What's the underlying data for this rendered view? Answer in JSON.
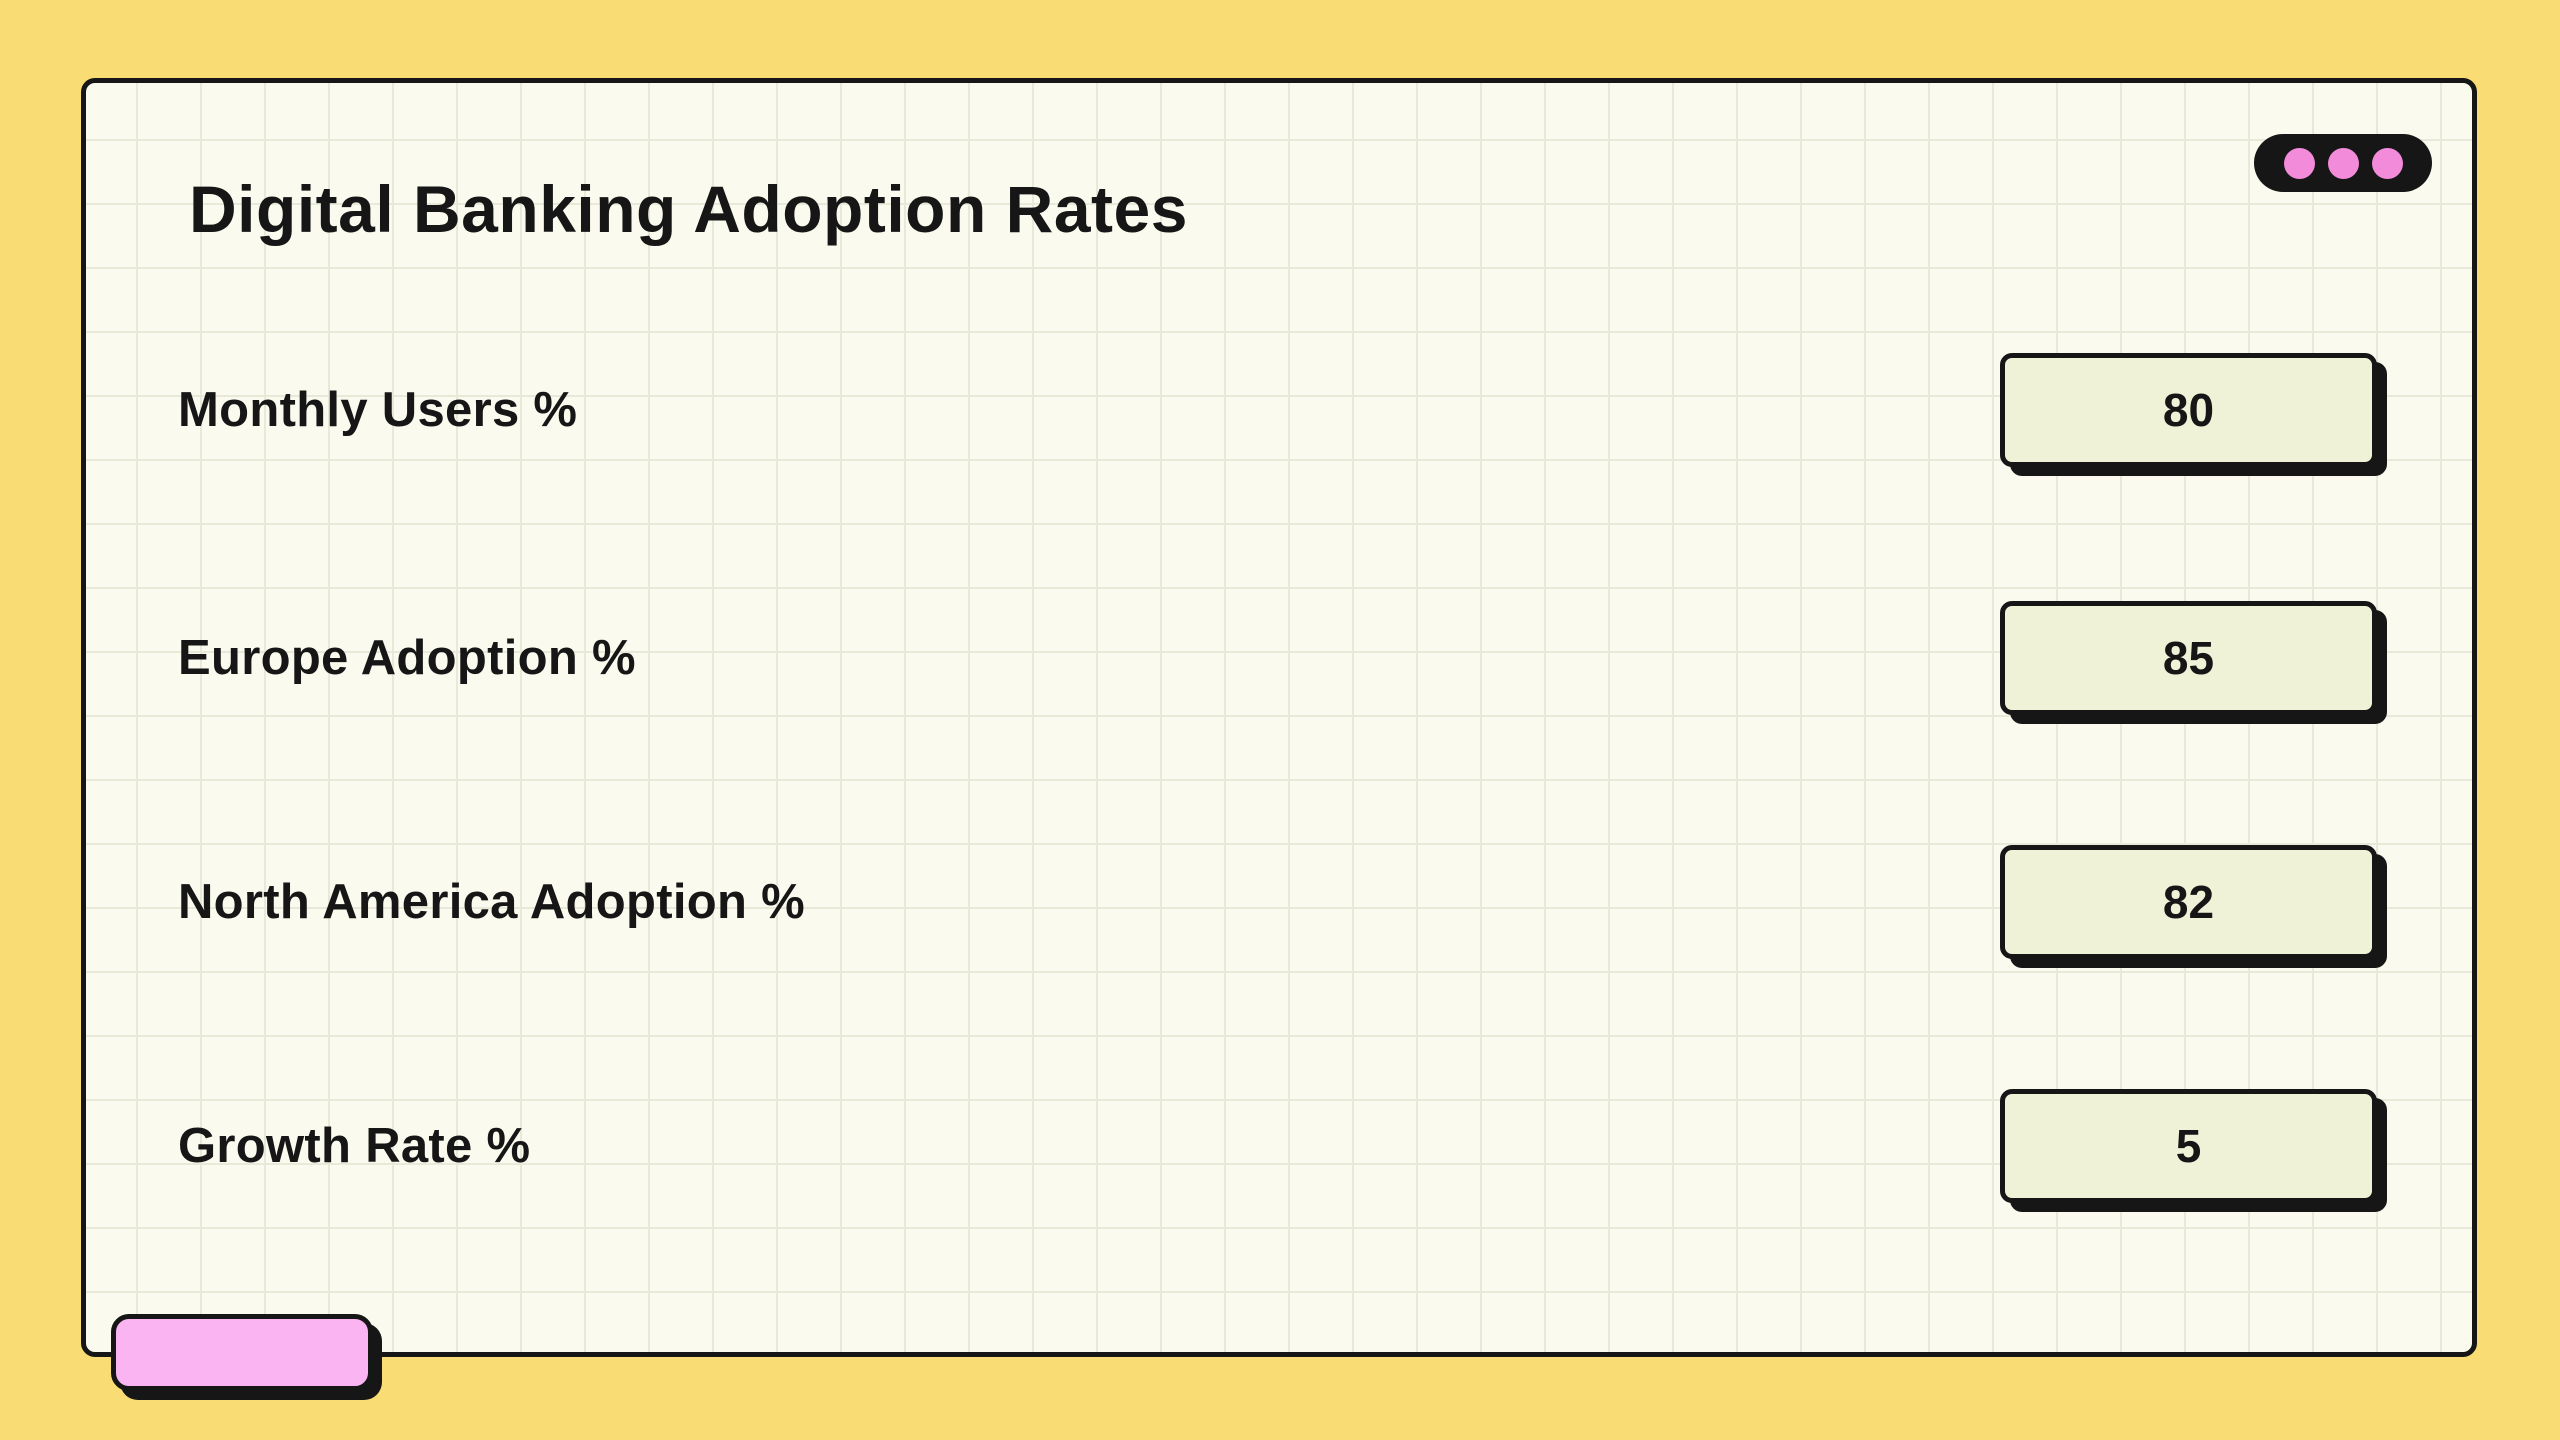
{
  "theme": {
    "background": "#FADC74",
    "card_background": "#FAFAEE",
    "grid_line": "#E8E9D9",
    "border_black": "#161616",
    "field_background": "#F0F2D8",
    "dot_pink": "#F28BD9",
    "button_pink": "#F9B4F1",
    "text_black": "#161616"
  },
  "card": {
    "title": "Digital Banking Adoption Rates",
    "menu_icon": "three-dots-menu"
  },
  "form": {
    "fields": [
      {
        "label": "Monthly Users %",
        "value": "80"
      },
      {
        "label": "Europe Adoption %",
        "value": "85"
      },
      {
        "label": "North America Adoption %",
        "value": "82"
      },
      {
        "label": "Growth Rate %",
        "value": "5"
      }
    ]
  },
  "footer": {
    "action_button_label": ""
  }
}
